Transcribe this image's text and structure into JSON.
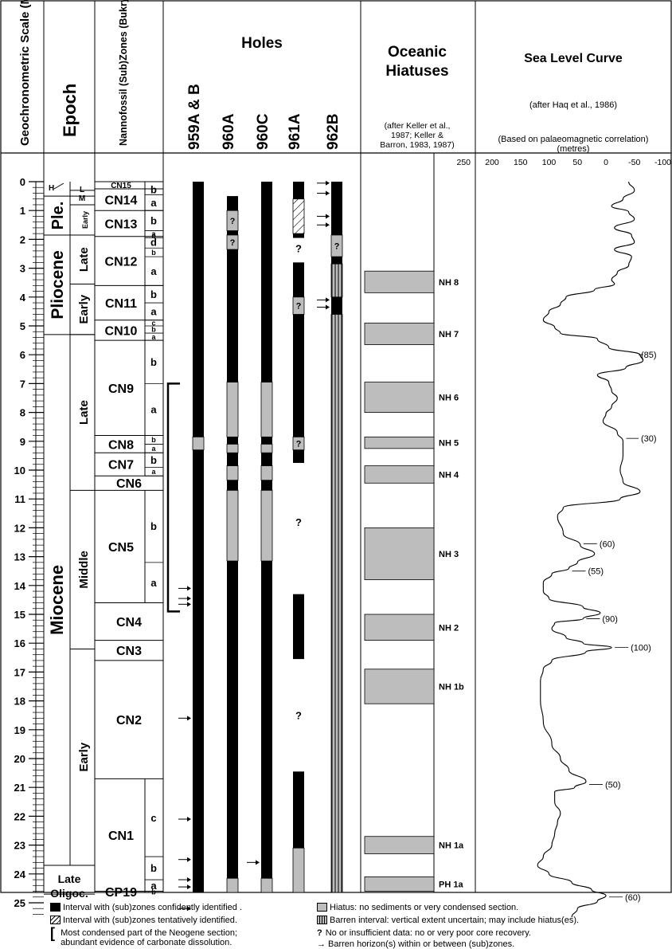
{
  "headers": {
    "scale": "Geochronometric Scale (Ma)",
    "epoch": "Epoch",
    "nanno": "Nannofossil (Sub)Zones (Bukry and Okada, 1980)",
    "holes": "Holes",
    "hiatuses": "Oceanic Hiatuses",
    "hiatuses_ref": [
      "(after Keller et al.,",
      "1987; Keller &",
      "Barron, 1983, 1987)"
    ],
    "sea_level": "Sea Level Curve",
    "sea_level_ref": "(after Haq et al., 1986)",
    "sea_level_basis": "(Based on palaeomagnetic correlation)",
    "sea_level_unit": "(metres)"
  },
  "hole_labels": [
    "959A & B",
    "960A",
    "960C",
    "961A",
    "962B"
  ],
  "age_ticks": [
    0,
    1,
    2,
    3,
    4,
    5,
    6,
    7,
    8,
    9,
    10,
    11,
    12,
    13,
    14,
    15,
    16,
    17,
    18,
    19,
    20,
    21,
    22,
    23,
    24,
    25
  ],
  "sea_level_ticks": [
    "250",
    "200",
    "150",
    "100",
    "50",
    "0",
    "-50",
    "-100"
  ],
  "epochs": [
    {
      "label": "Ple.",
      "top": 0.5,
      "bottom": 1.85
    },
    {
      "label": "Pliocene",
      "top": 1.85,
      "bottom": 5.3
    },
    {
      "label": "Miocene",
      "top": 5.3,
      "bottom": 23.7
    },
    {
      "label": "Late",
      "top": 23.7,
      "bottom": 24.7
    },
    {
      "label": "Oligoc.",
      "top": 24.7,
      "bottom": 25.5
    }
  ],
  "sub_epochs": [
    {
      "label": "H",
      "top": 0,
      "bottom": 0.3
    },
    {
      "label": "L",
      "top": 0.2,
      "bottom": 0.3
    },
    {
      "label": "M",
      "top": 0.3,
      "bottom": 0.8
    },
    {
      "label": "Early",
      "top": 0.8,
      "bottom": 1.85
    },
    {
      "label": "Late",
      "top": 1.85,
      "bottom": 3.55
    },
    {
      "label": "Early",
      "top": 3.55,
      "bottom": 5.3
    },
    {
      "label": "Late",
      "top": 5.3,
      "bottom": 10.7
    },
    {
      "label": "Middle",
      "top": 10.7,
      "bottom": 16.2
    },
    {
      "label": "Early",
      "top": 16.2,
      "bottom": 23.7
    }
  ],
  "zones": [
    {
      "label": "CN15",
      "top": 0,
      "bottom": 0.25
    },
    {
      "label": "CN14",
      "top": 0.25,
      "bottom": 1.0
    },
    {
      "label": "CN13",
      "top": 1.0,
      "bottom": 1.9
    },
    {
      "label": "CN12",
      "top": 1.9,
      "bottom": 3.6
    },
    {
      "label": "CN11",
      "top": 3.6,
      "bottom": 4.8
    },
    {
      "label": "CN10",
      "top": 4.8,
      "bottom": 5.5
    },
    {
      "label": "CN9",
      "top": 5.5,
      "bottom": 8.8
    },
    {
      "label": "CN8",
      "top": 8.8,
      "bottom": 9.4
    },
    {
      "label": "CN7",
      "top": 9.4,
      "bottom": 10.2
    },
    {
      "label": "CN6",
      "top": 10.2,
      "bottom": 10.7
    },
    {
      "label": "CN5",
      "top": 10.7,
      "bottom": 14.6
    },
    {
      "label": "CN4",
      "top": 14.6,
      "bottom": 15.9
    },
    {
      "label": "CN3",
      "top": 15.9,
      "bottom": 16.6
    },
    {
      "label": "CN2",
      "top": 16.6,
      "bottom": 20.7
    },
    {
      "label": "CN1",
      "top": 20.7,
      "bottom": 24.6
    },
    {
      "label": "CP19",
      "top": 24.6,
      "bottom": 25.5
    }
  ],
  "subzones": [
    {
      "label": "b",
      "top": 0.1,
      "bottom": 0.45
    },
    {
      "label": "a",
      "top": 0.45,
      "bottom": 1.0
    },
    {
      "label": "b",
      "top": 1.0,
      "bottom": 1.7
    },
    {
      "label": "a",
      "top": 1.7,
      "bottom": 1.9
    },
    {
      "label": "d",
      "top": 1.9,
      "bottom": 2.3
    },
    {
      "label": "c",
      "top": 1.8,
      "bottom": 1.95
    },
    {
      "label": "b",
      "top": 2.3,
      "bottom": 2.6
    },
    {
      "label": "a",
      "top": 2.6,
      "bottom": 3.6
    },
    {
      "label": "b",
      "top": 3.6,
      "bottom": 4.2
    },
    {
      "label": "a",
      "top": 4.2,
      "bottom": 4.8
    },
    {
      "label": "c",
      "top": 4.8,
      "bottom": 5.0
    },
    {
      "label": "b",
      "top": 5.0,
      "bottom": 5.25
    },
    {
      "label": "a",
      "top": 5.25,
      "bottom": 5.5
    },
    {
      "label": "b",
      "top": 5.5,
      "bottom": 7.0
    },
    {
      "label": "a",
      "top": 7.0,
      "bottom": 8.8
    },
    {
      "label": "b",
      "top": 8.8,
      "bottom": 9.1
    },
    {
      "label": "a",
      "top": 9.1,
      "bottom": 9.4
    },
    {
      "label": "b",
      "top": 9.4,
      "bottom": 9.9
    },
    {
      "label": "a",
      "top": 9.9,
      "bottom": 10.2
    },
    {
      "label": "b",
      "top": 10.7,
      "bottom": 13.2
    },
    {
      "label": "a",
      "top": 13.2,
      "bottom": 14.6
    },
    {
      "label": "c",
      "top": 20.7,
      "bottom": 23.4
    },
    {
      "label": "b",
      "top": 23.4,
      "bottom": 24.2
    },
    {
      "label": "a",
      "top": 24.2,
      "bottom": 24.6
    },
    {
      "label": "b",
      "top": 24.6,
      "bottom": 25.5
    }
  ],
  "holes": [
    {
      "name": "959A & B",
      "intervals": [
        {
          "top": 0,
          "bottom": 8.85,
          "kind": "black"
        },
        {
          "top": 8.85,
          "bottom": 9.3,
          "kind": "grey"
        },
        {
          "top": 9.3,
          "bottom": 25.5,
          "kind": "black"
        }
      ]
    },
    {
      "name": "960A",
      "intervals": [
        {
          "top": 0.5,
          "bottom": 1.0,
          "kind": "black"
        },
        {
          "top": 1.0,
          "bottom": 1.7,
          "kind": "grey",
          "mark": "?"
        },
        {
          "top": 1.7,
          "bottom": 1.85,
          "kind": "black"
        },
        {
          "top": 1.85,
          "bottom": 2.35,
          "kind": "grey",
          "mark": "?"
        },
        {
          "top": 2.35,
          "bottom": 6.95,
          "kind": "black"
        },
        {
          "top": 6.95,
          "bottom": 8.85,
          "kind": "grey"
        },
        {
          "top": 8.85,
          "bottom": 9.1,
          "kind": "black"
        },
        {
          "top": 9.1,
          "bottom": 9.4,
          "kind": "grey"
        },
        {
          "top": 9.4,
          "bottom": 9.85,
          "kind": "black"
        },
        {
          "top": 9.85,
          "bottom": 10.35,
          "kind": "grey"
        },
        {
          "top": 10.35,
          "bottom": 10.7,
          "kind": "black"
        },
        {
          "top": 10.7,
          "bottom": 13.15,
          "kind": "grey"
        },
        {
          "top": 13.15,
          "bottom": 24.15,
          "kind": "black"
        },
        {
          "top": 24.15,
          "bottom": 24.7,
          "kind": "grey"
        },
        {
          "top": 24.7,
          "bottom": 25.5,
          "kind": "black"
        }
      ]
    },
    {
      "name": "960C",
      "intervals": [
        {
          "top": 0,
          "bottom": 6.95,
          "kind": "black"
        },
        {
          "top": 6.95,
          "bottom": 8.85,
          "kind": "grey"
        },
        {
          "top": 8.85,
          "bottom": 9.1,
          "kind": "black"
        },
        {
          "top": 9.1,
          "bottom": 9.4,
          "kind": "grey"
        },
        {
          "top": 9.4,
          "bottom": 9.85,
          "kind": "black"
        },
        {
          "top": 9.85,
          "bottom": 10.35,
          "kind": "grey"
        },
        {
          "top": 10.35,
          "bottom": 10.7,
          "kind": "black"
        },
        {
          "top": 10.7,
          "bottom": 13.15,
          "kind": "grey"
        },
        {
          "top": 13.15,
          "bottom": 24.15,
          "kind": "black"
        },
        {
          "top": 24.15,
          "bottom": 24.7,
          "kind": "grey"
        },
        {
          "top": 24.7,
          "bottom": 25.5,
          "kind": "black"
        }
      ]
    },
    {
      "name": "961A",
      "intervals": [
        {
          "top": 0,
          "bottom": 0.6,
          "kind": "black"
        },
        {
          "top": 0.6,
          "bottom": 1.8,
          "kind": "hatch"
        },
        {
          "top": 1.8,
          "bottom": 1.95,
          "kind": "black"
        },
        {
          "top": 2.8,
          "bottom": 4.0,
          "kind": "black"
        },
        {
          "top": 4.0,
          "bottom": 4.6,
          "kind": "grey",
          "mark": "?"
        },
        {
          "top": 4.6,
          "bottom": 8.85,
          "kind": "black"
        },
        {
          "top": 8.85,
          "bottom": 9.3,
          "kind": "grey",
          "mark": "?"
        },
        {
          "top": 9.3,
          "bottom": 9.75,
          "kind": "black"
        },
        {
          "top": 14.3,
          "bottom": 16.55,
          "kind": "black"
        },
        {
          "top": 20.45,
          "bottom": 23.1,
          "kind": "black"
        },
        {
          "top": 23.1,
          "bottom": 25.5,
          "kind": "grey"
        }
      ]
    },
    {
      "name": "962B",
      "intervals": [
        {
          "top": 0,
          "bottom": 1.85,
          "kind": "black"
        },
        {
          "top": 1.85,
          "bottom": 2.6,
          "kind": "grey",
          "mark": "?"
        },
        {
          "top": 2.6,
          "bottom": 2.85,
          "kind": "black"
        },
        {
          "top": 2.85,
          "bottom": 4.0,
          "kind": "stripe"
        },
        {
          "top": 4.0,
          "bottom": 4.6,
          "kind": "black"
        },
        {
          "top": 4.6,
          "bottom": 25.5,
          "kind": "stripe"
        }
      ]
    }
  ],
  "no_data_marks": [
    {
      "hole": "961A",
      "age": 2.3,
      "text": "?"
    },
    {
      "hole": "961A",
      "age": 11.8,
      "text": "?"
    },
    {
      "hole": "961A",
      "age": 18.5,
      "text": "?"
    }
  ],
  "barren_arrows": [
    {
      "hole": "962B",
      "age": 0.05
    },
    {
      "hole": "962B",
      "age": 0.4
    },
    {
      "hole": "962B",
      "age": 1.2
    },
    {
      "hole": "962B",
      "age": 1.5
    },
    {
      "hole": "962B",
      "age": 4.1
    },
    {
      "hole": "962B",
      "age": 4.35
    },
    {
      "hole": "959A & B",
      "age": 14.1
    },
    {
      "hole": "959A & B",
      "age": 14.45
    },
    {
      "hole": "959A & B",
      "age": 14.65
    },
    {
      "hole": "959A & B",
      "age": 18.6
    },
    {
      "hole": "959A & B",
      "age": 22.1
    },
    {
      "hole": "959A & B",
      "age": 23.5
    },
    {
      "hole": "959A & B",
      "age": 24.2
    },
    {
      "hole": "959A & B",
      "age": 24.45
    },
    {
      "hole": "959A & B",
      "age": 25.2
    },
    {
      "hole": "960C",
      "age": 23.6
    }
  ],
  "condensed_bracket": {
    "top": 7.0,
    "bottom": 14.9
  },
  "hiatuses": [
    {
      "label": "NH 8",
      "top": 3.1,
      "bottom": 3.85
    },
    {
      "label": "NH 7",
      "top": 4.9,
      "bottom": 5.65
    },
    {
      "label": "NH 6",
      "top": 6.95,
      "bottom": 8.0
    },
    {
      "label": "NH 5",
      "top": 8.85,
      "bottom": 9.25
    },
    {
      "label": "NH 4",
      "top": 9.85,
      "bottom": 10.45
    },
    {
      "label": "NH 3",
      "top": 12.0,
      "bottom": 13.8
    },
    {
      "label": "NH 2",
      "top": 15.0,
      "bottom": 15.9
    },
    {
      "label": "NH 1b",
      "top": 16.9,
      "bottom": 18.1
    },
    {
      "label": "NH 1a",
      "top": 22.7,
      "bottom": 23.3
    },
    {
      "label": "PH 1a",
      "top": 24.1,
      "bottom": 24.6
    }
  ],
  "sea_level_curve": [
    [
      0,
      -40
    ],
    [
      0.3,
      -50
    ],
    [
      0.6,
      -30
    ],
    [
      0.85,
      -10
    ],
    [
      1.05,
      -40
    ],
    [
      1.3,
      -50
    ],
    [
      1.6,
      -15
    ],
    [
      1.85,
      -45
    ],
    [
      2.1,
      -50
    ],
    [
      2.35,
      -15
    ],
    [
      2.6,
      -45
    ],
    [
      2.9,
      -40
    ],
    [
      3.15,
      -20
    ],
    [
      3.4,
      -10
    ],
    [
      3.55,
      -15
    ],
    [
      3.75,
      20
    ],
    [
      4.0,
      70
    ],
    [
      4.25,
      80
    ],
    [
      4.5,
      100
    ],
    [
      4.8,
      110
    ],
    [
      5.05,
      90
    ],
    [
      5.25,
      80
    ],
    [
      5.45,
      15
    ],
    [
      5.75,
      -5
    ],
    [
      6.0,
      -60
    ],
    [
      6.2,
      -65
    ],
    [
      6.45,
      -35
    ],
    [
      6.7,
      15
    ],
    [
      6.95,
      -5
    ],
    [
      7.25,
      -10
    ],
    [
      7.5,
      -20
    ],
    [
      7.8,
      -10
    ],
    [
      8.05,
      0
    ],
    [
      8.3,
      5
    ],
    [
      8.7,
      -20
    ],
    [
      9.0,
      -30
    ],
    [
      9.5,
      -30
    ],
    [
      10.0,
      -25
    ],
    [
      10.4,
      -30
    ],
    [
      10.75,
      -60
    ],
    [
      11.0,
      -25
    ],
    [
      11.3,
      75
    ],
    [
      11.6,
      85
    ],
    [
      12.2,
      75
    ],
    [
      12.6,
      45
    ],
    [
      12.9,
      20
    ],
    [
      13.2,
      50
    ],
    [
      13.4,
      65
    ],
    [
      13.6,
      95
    ],
    [
      13.9,
      110
    ],
    [
      14.2,
      110
    ],
    [
      14.45,
      100
    ],
    [
      14.75,
      40
    ],
    [
      14.95,
      10
    ],
    [
      15.15,
      40
    ],
    [
      15.3,
      90
    ],
    [
      15.5,
      95
    ],
    [
      15.8,
      70
    ],
    [
      16.0,
      40
    ],
    [
      16.15,
      -10
    ],
    [
      16.3,
      35
    ],
    [
      16.6,
      95
    ],
    [
      16.9,
      110
    ],
    [
      17.3,
      115
    ],
    [
      18.0,
      115
    ],
    [
      18.7,
      110
    ],
    [
      19.5,
      95
    ],
    [
      20.0,
      80
    ],
    [
      20.4,
      65
    ],
    [
      20.8,
      35
    ],
    [
      21.0,
      55
    ],
    [
      21.15,
      90
    ],
    [
      21.5,
      90
    ],
    [
      21.9,
      80
    ],
    [
      22.2,
      85
    ],
    [
      22.6,
      90
    ],
    [
      23.0,
      95
    ],
    [
      23.4,
      110
    ],
    [
      23.7,
      120
    ],
    [
      24.0,
      100
    ],
    [
      24.3,
      60
    ],
    [
      24.55,
      25
    ],
    [
      24.75,
      0
    ],
    [
      24.95,
      15
    ],
    [
      25.2,
      50
    ],
    [
      25.5,
      60
    ]
  ],
  "sea_level_annotations": [
    {
      "age": 6.0,
      "text": "(85)"
    },
    {
      "age": 8.9,
      "text": "(30)"
    },
    {
      "age": 12.55,
      "text": "(60)"
    },
    {
      "age": 13.5,
      "text": "(55)"
    },
    {
      "age": 15.15,
      "text": "(90)"
    },
    {
      "age": 16.15,
      "text": "(100)"
    },
    {
      "age": 20.9,
      "text": "(50)"
    },
    {
      "age": 24.8,
      "text": "(60)"
    }
  ],
  "legend": {
    "confident": "Interval with (sub)zones confidently identified .",
    "tentative": "Interval with (sub)zones tentatively identified.",
    "condensed": [
      "Most condensed part of the Neogene section;",
      "abundant evidence of carbonate dissolution."
    ],
    "hiatus": "Hiatus: no sediments or very condensed section.",
    "barren_interval": "Barren interval: vertical extent uncertain; may include hiatus(es).",
    "no_data": "No or insufficient data: no or very poor core recovery.",
    "barren_horizon": "Barren horizon(s) within or between (sub)zones.",
    "no_data_symbol": "?"
  },
  "colors": {
    "black": "#000000",
    "grey": "#bdbdbd"
  }
}
